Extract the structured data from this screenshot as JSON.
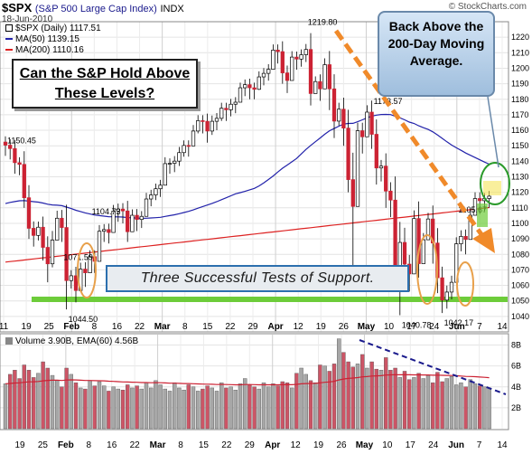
{
  "header": {
    "symbol": "$SPX",
    "description": "(S&P 500 Large Cap Index)",
    "exchange": "INDX",
    "date": "18-Jun-2010",
    "credit": "© StockCharts.com"
  },
  "legend": {
    "price": "$SPX (Daily) 1117.51",
    "ma50": "MA(50) 1139.15",
    "ma200": "MA(200) 1110.16",
    "volume": "Volume 3.90B, EMA(60) 4.56B"
  },
  "annotations": {
    "question": "Can the S&P Hold Above These Levels?",
    "support": "Three Successful Tests of Support.",
    "moving_avg": "Back Above the 200-Day Moving Average."
  },
  "colors": {
    "up": "#ffffff",
    "down": "#cc2233",
    "ma50": "#2222aa",
    "ma200": "#dd2222",
    "support": "#6dcc3a",
    "trend": "#f08a2a",
    "volume_trend": "#1a1a8c",
    "callout": "#e8a04a"
  },
  "chart_data": [
    {
      "type": "candlestick",
      "title": "$SPX (Daily)",
      "ylim": [
        1030,
        1230
      ],
      "yticks": [
        1040,
        1050,
        1060,
        1070,
        1080,
        1090,
        1100,
        1110,
        1120,
        1130,
        1140,
        1150,
        1160,
        1170,
        1180,
        1190,
        1200,
        1210,
        1220
      ],
      "xticks": [
        "11",
        "19",
        "25",
        "Feb",
        "8",
        "16",
        "22",
        "Mar",
        "8",
        "15",
        "22",
        "29",
        "Apr",
        "12",
        "19",
        "26",
        "May",
        "10",
        "17",
        "24",
        "Jun",
        "7",
        "14"
      ],
      "close": [
        1150.4,
        1148.2,
        1139.1,
        1138.0,
        1116.5,
        1096.8,
        1092.2,
        1097.5,
        1084.5,
        1073.9,
        1089.2,
        1103.3,
        1097.3,
        1063.1,
        1066.2,
        1056.7,
        1070.5,
        1068.1,
        1078.5,
        1075.5,
        1094.9,
        1096.0,
        1094.1,
        1107.9,
        1109.2,
        1108.0,
        1094.6,
        1105.2,
        1102.5,
        1104.5,
        1115.7,
        1118.3,
        1122.3,
        1124.6,
        1138.5,
        1138.7,
        1140.1,
        1145.6,
        1150.2,
        1149.9,
        1159.5,
        1166.2,
        1165.8,
        1159.5,
        1165.8,
        1167.7,
        1174.2,
        1173.2,
        1176.8,
        1178.1,
        1187.4,
        1189.4,
        1187.4,
        1186.4,
        1194.4,
        1196.7,
        1199.3,
        1211.7,
        1210.7,
        1197.0,
        1192.1,
        1207.2,
        1205.9,
        1208.7,
        1212.1,
        1183.7,
        1191.4,
        1186.7,
        1202.3,
        1186.7,
        1165.9,
        1173.6,
        1161.4,
        1128.2,
        1110.9,
        1159.7,
        1155.8,
        1171.7,
        1157.4,
        1135.7,
        1136.9,
        1120.8,
        1115.0,
        1071.6,
        1087.7,
        1073.7,
        1067.4,
        1103.1,
        1074.0,
        1089.4,
        1102.8,
        1087.3,
        1064.9,
        1050.5,
        1055.7,
        1062.0,
        1086.8,
        1091.6,
        1089.6,
        1105.2,
        1116.0,
        1114.6,
        1116.0,
        1117.5
      ],
      "low": [
        1143.5,
        1141.2,
        1132.0,
        1131.0,
        1110.0,
        1090.0,
        1085.0,
        1089.0,
        1076.0,
        1062.0,
        1071.6,
        1090.0,
        1088.0,
        1044.5,
        1058.0,
        1049.0,
        1060.0,
        1059.0,
        1068.0,
        1068.0,
        1085.0,
        1088.0,
        1087.0,
        1098.0,
        1101.0,
        1100.0,
        1088.0,
        1096.0,
        1095.0,
        1097.0,
        1106.0,
        1111.0,
        1115.0,
        1117.0,
        1128.0,
        1132.0,
        1133.0,
        1137.0,
        1143.0,
        1143.0,
        1150.0,
        1158.0,
        1158.0,
        1152.0,
        1157.0,
        1160.0,
        1166.0,
        1166.0,
        1169.0,
        1171.0,
        1180.0,
        1182.0,
        1180.0,
        1180.0,
        1186.0,
        1189.0,
        1192.0,
        1203.0,
        1203.0,
        1190.0,
        1184.0,
        1198.0,
        1199.0,
        1201.0,
        1204.0,
        1176.0,
        1184.0,
        1179.0,
        1192.0,
        1173.0,
        1155.0,
        1163.0,
        1150.0,
        1120.0,
        1065.0,
        1145.0,
        1145.0,
        1160.0,
        1148.0,
        1125.0,
        1127.0,
        1110.0,
        1104.0,
        1060.0,
        1040.78,
        1056.0,
        1056.0,
        1088.0,
        1065.0,
        1078.0,
        1093.0,
        1074.0,
        1055.0,
        1042.17,
        1045.0,
        1051.0,
        1076.0,
        1082.0,
        1080.0,
        1094.0,
        1106.0,
        1106.0,
        1108.0,
        1110.0
      ],
      "labels": [
        "1150.45",
        "1104.73",
        "1071.59",
        "1044.50",
        "1219.80",
        "1173.57",
        "1105.67",
        "1040.78",
        "1042.17"
      ]
    },
    {
      "type": "bar",
      "title": "Volume",
      "ylim": [
        0,
        9
      ],
      "yticks": [
        "2B",
        "4B",
        "6B",
        "8B"
      ],
      "xticks": [
        "19",
        "25",
        "Feb",
        "8",
        "16",
        "22",
        "Mar",
        "8",
        "15",
        "22",
        "29",
        "Apr",
        "12",
        "19",
        "26",
        "May",
        "10",
        "17",
        "24",
        "Jun",
        "7",
        "14"
      ],
      "values": [
        4.3,
        5.2,
        5.6,
        4.8,
        6.1,
        5.6,
        4.9,
        5.3,
        6.4,
        5.8,
        5.1,
        4.6,
        4.0,
        5.8,
        5.2,
        4.4,
        3.9,
        3.8,
        4.6,
        4.1,
        4.5,
        4.1,
        3.6,
        4.0,
        3.8,
        3.7,
        4.2,
        3.9,
        4.1,
        3.8,
        4.4,
        3.9,
        4.6,
        4.2,
        3.8,
        3.6,
        4.4,
        3.9,
        3.7,
        4.2,
        4.0,
        3.6,
        3.8,
        4.1,
        3.9,
        3.6,
        4.4,
        3.9,
        4.0,
        3.7,
        4.3,
        4.8,
        4.2,
        4.0,
        3.8,
        4.4,
        4.0,
        4.3,
        4.1,
        4.5,
        4.4,
        3.9,
        5.3,
        5.8,
        5.2,
        4.6,
        4.4,
        6.1,
        6.0,
        5.5,
        6.2,
        8.6,
        7.3,
        6.4,
        5.9,
        6.2,
        7.1,
        5.8,
        6.4,
        5.7,
        5.6,
        6.8,
        5.6,
        5.8,
        4.9,
        5.5,
        4.7,
        4.9,
        5.3,
        4.8,
        5.1,
        4.4,
        5.4,
        4.5,
        4.8,
        5.0,
        4.2,
        4.4,
        4.0,
        4.7,
        4.3,
        4.1,
        4.0,
        3.9
      ]
    }
  ]
}
